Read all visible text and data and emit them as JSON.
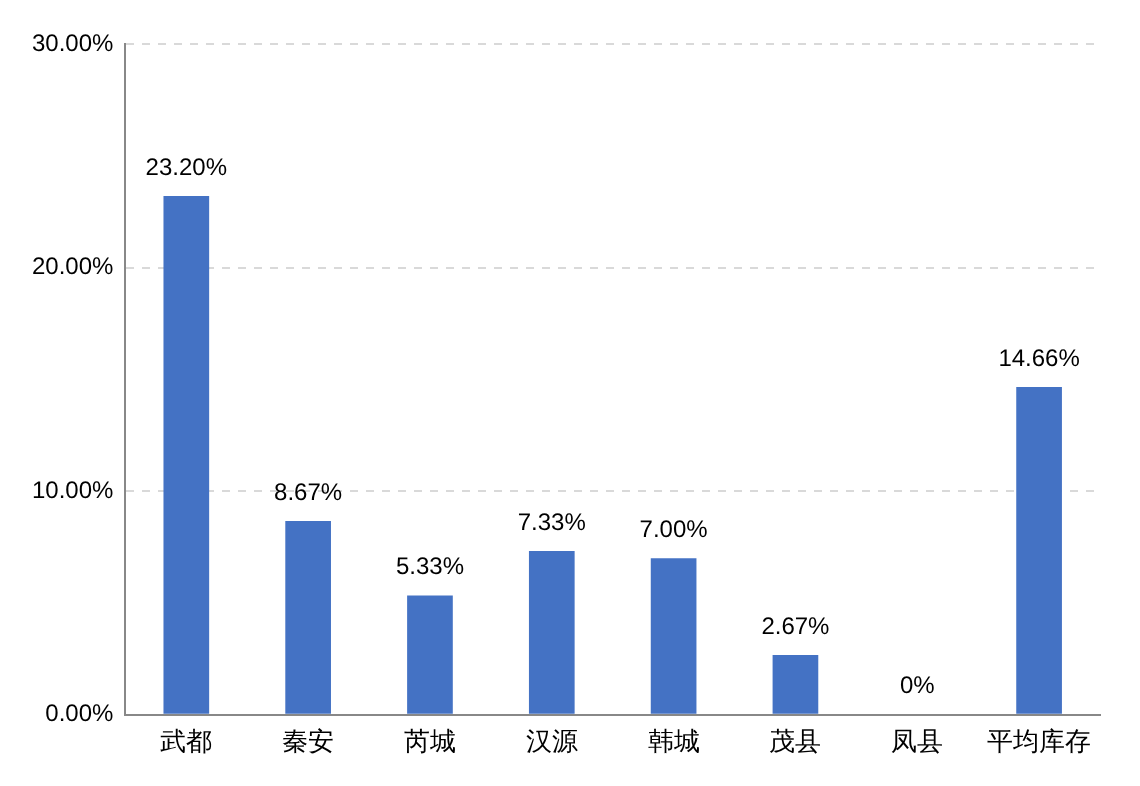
{
  "chart_data": {
    "type": "bar",
    "categories": [
      "武都",
      "秦安",
      "芮城",
      "汉源",
      "韩城",
      "茂县",
      "凤县",
      "平均库存"
    ],
    "values": [
      23.2,
      8.67,
      5.33,
      7.33,
      7.0,
      2.67,
      0,
      14.66
    ],
    "value_labels": [
      "23.20%",
      "8.67%",
      "5.33%",
      "7.33%",
      "7.00%",
      "2.67%",
      "0%",
      "14.66%"
    ],
    "color": "#4472c4",
    "ylim": [
      0,
      30
    ],
    "yticks": [
      {
        "value": 0,
        "label": "0.00%"
      },
      {
        "value": 10,
        "label": "10.00%"
      },
      {
        "value": 20,
        "label": "20.00%"
      },
      {
        "value": 30,
        "label": "30.00%"
      }
    ],
    "grid": "y"
  }
}
